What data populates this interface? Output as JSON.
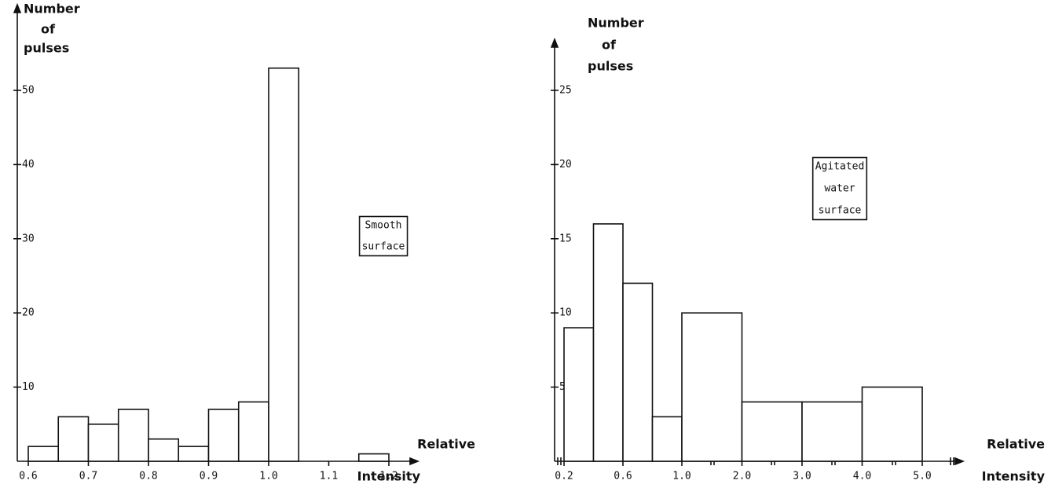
{
  "chart_data": [
    {
      "type": "histogram",
      "ylabel": [
        "Number",
        "of",
        "pulses"
      ],
      "xlabel": [
        "Relative",
        "Intensity"
      ],
      "annotation": [
        "Smooth",
        "surface"
      ],
      "bins": [
        0.6,
        0.65,
        0.7,
        0.75,
        0.8,
        0.85,
        0.9,
        0.95,
        1.0,
        1.05,
        1.1,
        1.15,
        1.2
      ],
      "values": [
        2,
        6,
        5,
        7,
        3,
        2,
        7,
        8,
        53,
        0,
        0,
        1
      ],
      "color": "#ffffff",
      "xlim": [
        0.6,
        1.25
      ],
      "xticks": [
        {
          "value": 0.6,
          "label": "0.6"
        },
        0.7,
        0.8,
        0.9,
        {
          "value": 1.0,
          "label": "1.0"
        },
        1.1,
        1.2
      ],
      "ylim": [
        0,
        55
      ],
      "yticks": [
        10,
        20,
        30,
        40,
        50
      ]
    },
    {
      "type": "histogram",
      "ylabel": [
        "Number",
        "of",
        "pulses"
      ],
      "xlabel": [
        "Relative",
        "Intensity"
      ],
      "annotation": [
        "Agitated",
        "water",
        "surface"
      ],
      "bins": [
        0.2,
        0.4,
        0.6,
        0.8,
        1.0,
        2.0,
        3.0,
        4.0,
        5.0
      ],
      "values": [
        9,
        16,
        12,
        3,
        10,
        4,
        4,
        5
      ],
      "color": "#ffffff",
      "xlim": [
        0.2,
        5.5
      ],
      "xticks": [
        0.2,
        0.6,
        {
          "value": 1.0,
          "label": "1.0"
        },
        {
          "value": 2.0,
          "label": "2.0"
        },
        {
          "value": 3.0,
          "label": "3.0"
        },
        {
          "value": 4.0,
          "label": "4.0"
        },
        {
          "value": 5.0,
          "label": "5.0"
        }
      ],
      "ylim": [
        0,
        27
      ],
      "yticks": [
        5,
        10,
        15,
        20,
        25
      ]
    }
  ]
}
